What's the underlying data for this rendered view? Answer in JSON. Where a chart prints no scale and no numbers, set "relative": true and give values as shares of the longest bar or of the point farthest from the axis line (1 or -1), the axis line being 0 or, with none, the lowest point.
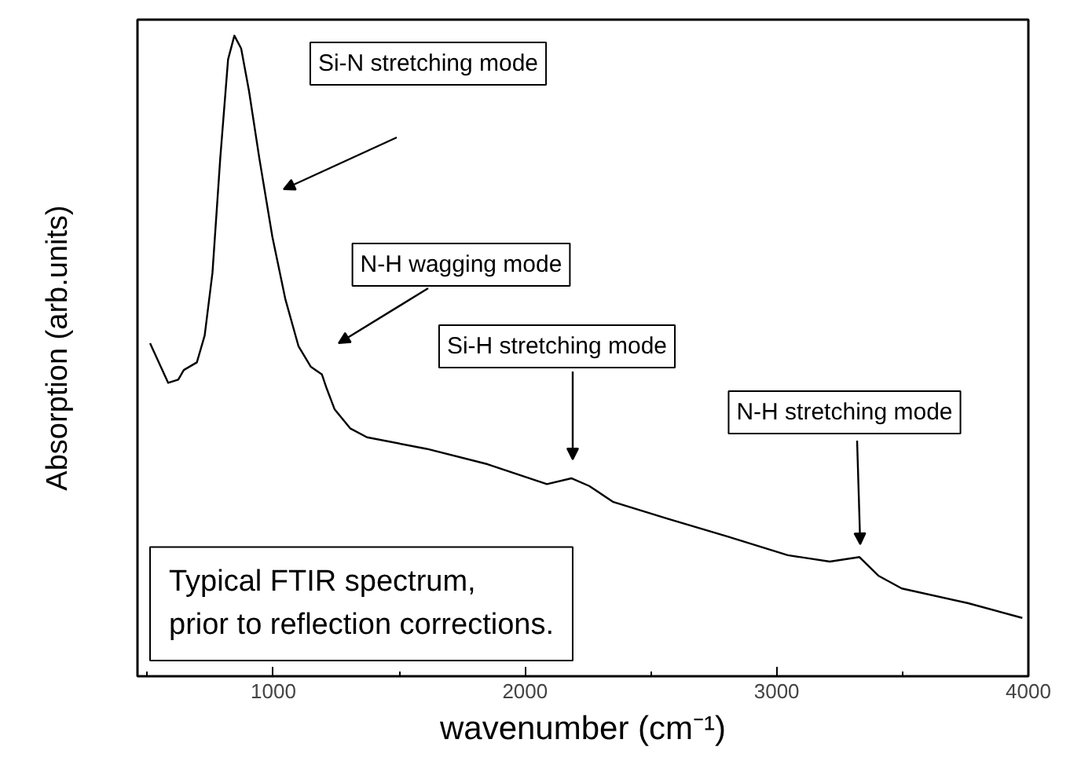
{
  "chart_data": {
    "type": "line",
    "relative": true,
    "xlabel": "wavenumber (cm⁻¹)",
    "ylabel": "Absorption (arb.units)",
    "xlim": [
      460,
      4000
    ],
    "xticks": [
      1000,
      2000,
      3000,
      4000
    ],
    "grid": false,
    "series": [
      {
        "color": "#000000",
        "x": [
          510,
          582,
          622,
          644,
          696,
          727,
          758,
          789,
          820,
          845,
          872,
          903,
          944,
          996,
          1048,
          1100,
          1149,
          1193,
          1212,
          1243,
          1305,
          1372,
          1609,
          1851,
          2087,
          2184,
          2255,
          2351,
          2566,
          2805,
          3044,
          3211,
          3329,
          3404,
          3497,
          3761,
          3976
        ],
        "values": [
          0.52,
          0.458,
          0.463,
          0.478,
          0.49,
          0.532,
          0.63,
          0.809,
          0.963,
          1.0,
          0.98,
          0.914,
          0.809,
          0.686,
          0.588,
          0.515,
          0.483,
          0.471,
          0.449,
          0.417,
          0.387,
          0.373,
          0.355,
          0.331,
          0.3,
          0.309,
          0.297,
          0.272,
          0.246,
          0.218,
          0.189,
          0.179,
          0.186,
          0.157,
          0.137,
          0.114,
          0.091
        ]
      }
    ],
    "annotations": [
      "Si-N stretching mode",
      "N-H wagging mode",
      "Si-H stretching mode",
      "N-H stretching mode",
      "Typical FTIR spectrum,\nprior to reflection corrections."
    ]
  }
}
